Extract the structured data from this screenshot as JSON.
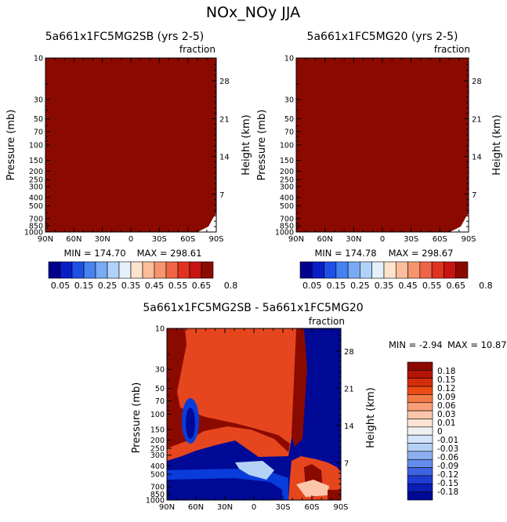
{
  "main_title": "NOx_NOy JJA",
  "chart_data": [
    {
      "type": "heatmap",
      "title": "5a661x1FC5MG2SB (yrs 2-5)",
      "units": "fraction",
      "ylabel": "Pressure (mb)",
      "ylabel_right": "Height (km)",
      "x_ticks": [
        "90N",
        "60N",
        "30N",
        "0",
        "30S",
        "60S",
        "90S"
      ],
      "y_ticks": [
        "10",
        "30",
        "50",
        "70",
        "100",
        "150",
        "200",
        "250",
        "300",
        "400",
        "500",
        "700",
        "850",
        "1000"
      ],
      "y2_ticks": [
        "28",
        "21",
        "14",
        "7"
      ],
      "min_label": "MIN = 174.70",
      "max_label": "MAX = 298.61",
      "colorbar_labels": [
        "0.05",
        "0.15",
        "0.25",
        "0.35",
        "0.45",
        "0.55",
        "0.65",
        "0.8"
      ]
    },
    {
      "type": "heatmap",
      "title": "5a661x1FC5MG20 (yrs 2-5)",
      "units": "fraction",
      "ylabel": "Pressure (mb)",
      "ylabel_right": "Height (km)",
      "x_ticks": [
        "90N",
        "60N",
        "30N",
        "0",
        "30S",
        "60S",
        "90S"
      ],
      "y_ticks": [
        "10",
        "30",
        "50",
        "70",
        "100",
        "150",
        "200",
        "250",
        "300",
        "400",
        "500",
        "700",
        "850",
        "1000"
      ],
      "y2_ticks": [
        "28",
        "21",
        "14",
        "7"
      ],
      "min_label": "MIN = 174.78",
      "max_label": "MAX = 298.67",
      "colorbar_labels": [
        "0.05",
        "0.15",
        "0.25",
        "0.35",
        "0.45",
        "0.55",
        "0.65",
        "0.8"
      ]
    },
    {
      "type": "heatmap",
      "title": "5a661x1FC5MG2SB - 5a661x1FC5MG20",
      "units": "fraction",
      "ylabel": "Pressure (mb)",
      "ylabel_right": "Height (km)",
      "x_ticks": [
        "90N",
        "60N",
        "30N",
        "0",
        "30S",
        "60S",
        "90S"
      ],
      "y_ticks": [
        "10",
        "30",
        "50",
        "70",
        "100",
        "150",
        "200",
        "250",
        "300",
        "400",
        "500",
        "700",
        "850",
        "1000"
      ],
      "y2_ticks": [
        "28",
        "21",
        "14",
        "7"
      ],
      "min_label": "MIN =   -2.94",
      "max_label": "MAX =   10.87",
      "colorbar_labels": [
        "0.18",
        "0.15",
        "0.12",
        "0.09",
        "0.06",
        "0.03",
        "0.01",
        "0",
        "-0.01",
        "-0.03",
        "-0.06",
        "-0.09",
        "-0.12",
        "-0.15",
        "-0.18"
      ]
    }
  ],
  "colors": {
    "dark_red": "#8b0a00",
    "dark_blue": "#000a96",
    "blue": "#0a3cdc",
    "red": "#e6461e",
    "scale1": [
      "#00008c",
      "#0a1ec8",
      "#1e50e6",
      "#4682f0",
      "#78aaf5",
      "#afd2fa",
      "#e6f0fa",
      "#fde2cc",
      "#fbbd9b",
      "#f7946e",
      "#f06446",
      "#e1321e",
      "#c81410",
      "#8b0a00"
    ],
    "scale2": [
      "#8b0a00",
      "#b41405",
      "#d22d0a",
      "#eb4b14",
      "#f57a46",
      "#fa9e78",
      "#fcc6aa",
      "#fee4d2",
      "#f0f0f0",
      "#d2e4fa",
      "#b4d2f5",
      "#8caff0",
      "#648ceb",
      "#3c64e1",
      "#1e3cd2",
      "#0a1eb4",
      "#000a96"
    ]
  }
}
